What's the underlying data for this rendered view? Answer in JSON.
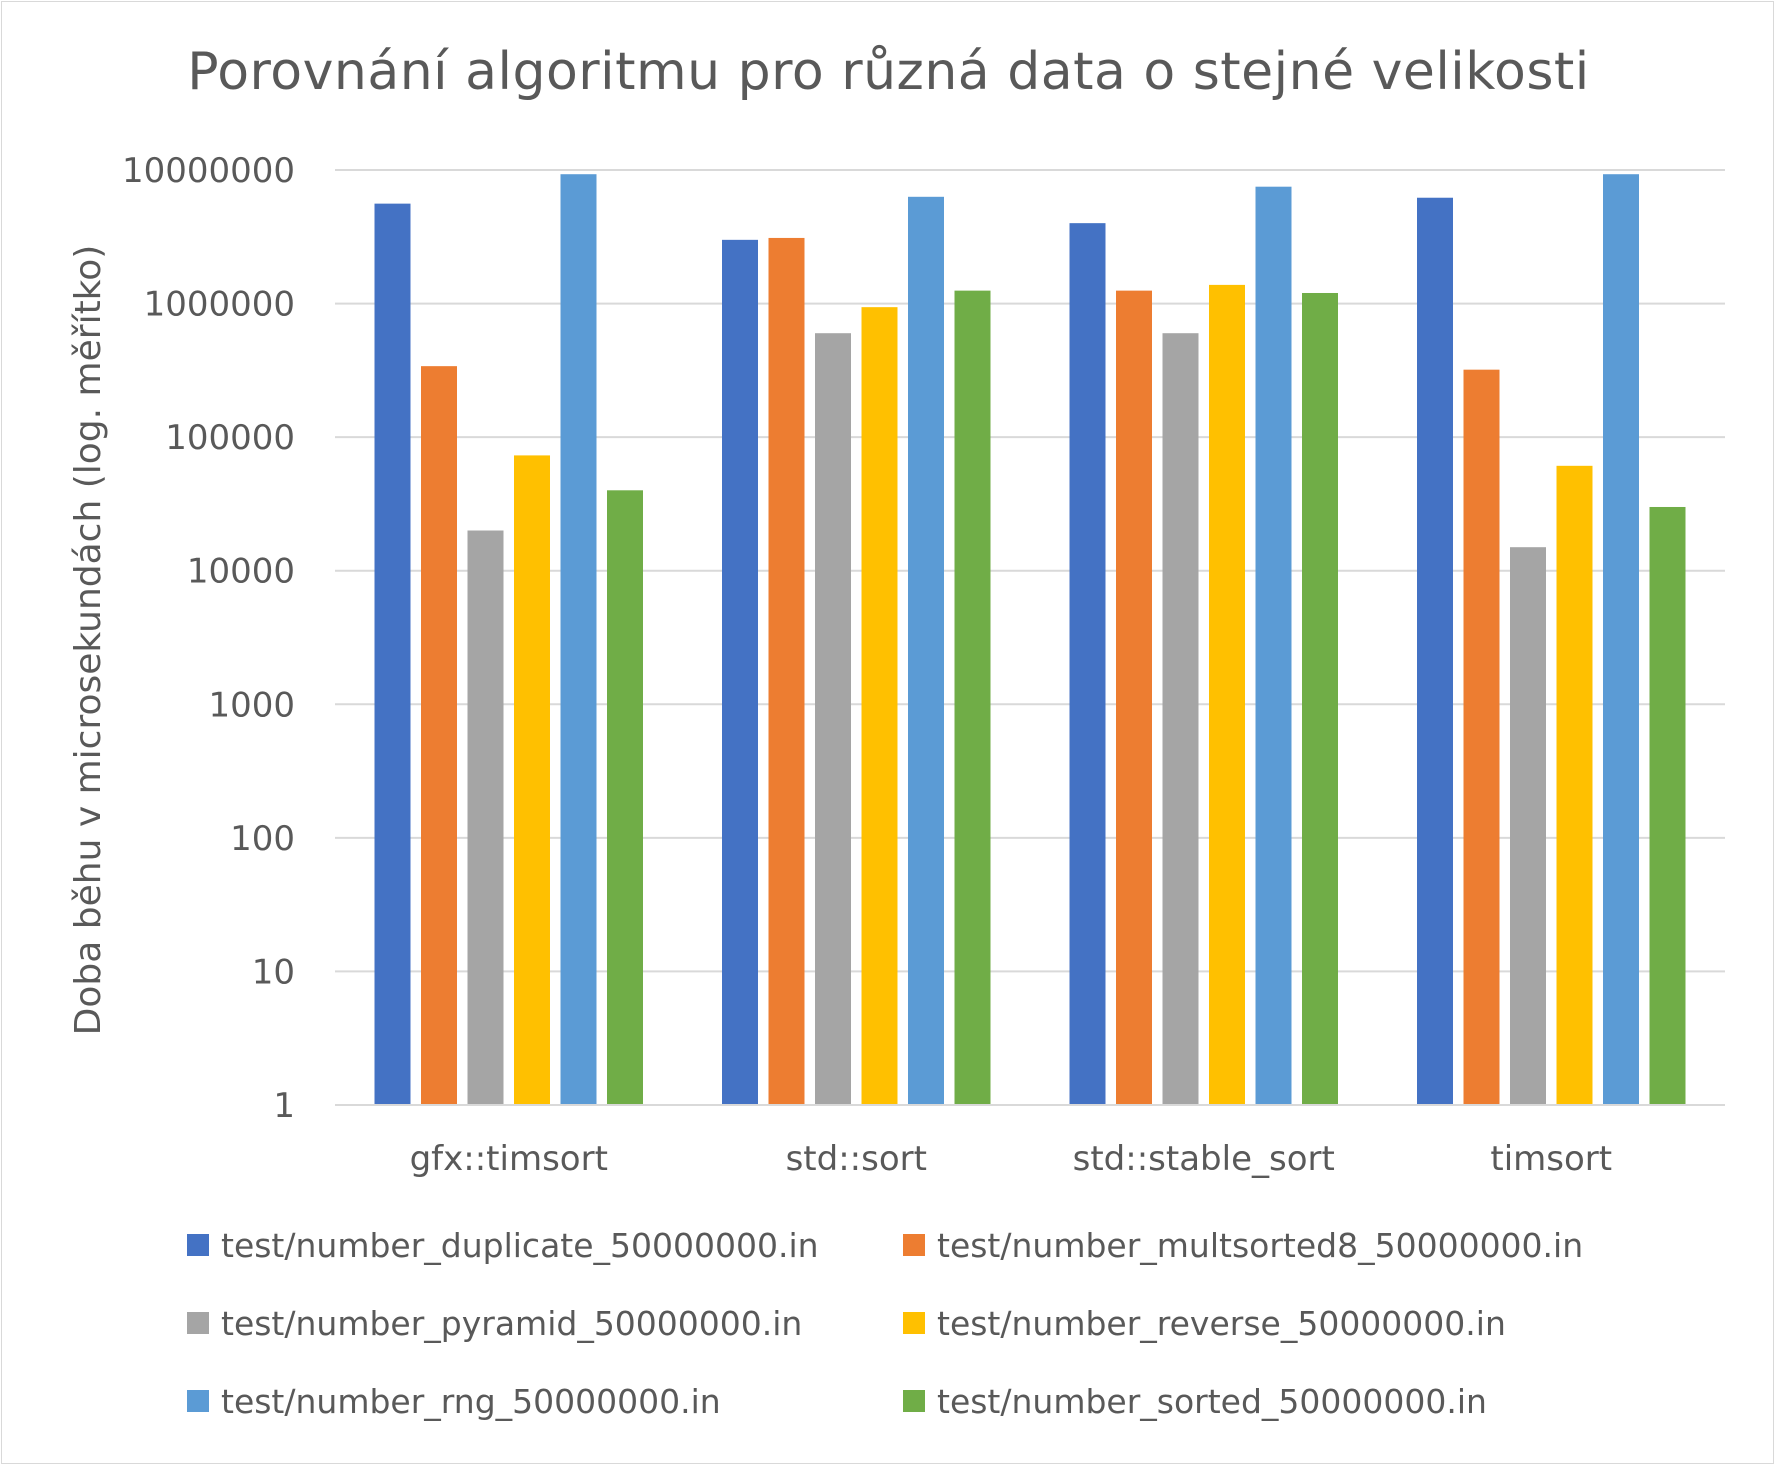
{
  "chart_data": {
    "type": "bar",
    "title": "Porovnání algoritmu pro různá data o stejné velikosti",
    "ylabel": "Doba běhu v microsekundách (log. měřítko)",
    "xlabel": "",
    "yscale": "log",
    "ylim": [
      1,
      10000000
    ],
    "yticks": [
      "1",
      "10",
      "100",
      "1000",
      "10000",
      "100000",
      "1000000",
      "10000000"
    ],
    "grid": true,
    "legend_position": "bottom",
    "categories": [
      "gfx::timsort",
      "std::sort",
      "std::stable_sort",
      "timsort"
    ],
    "series": [
      {
        "name": "test/number_duplicate_50000000.in",
        "color": "#4472C4",
        "values": [
          5600000,
          3000000,
          4000000,
          6200000
        ]
      },
      {
        "name": "test/number_multsorted8_50000000.in",
        "color": "#ED7D31",
        "values": [
          340000,
          3100000,
          1250000,
          320000
        ]
      },
      {
        "name": "test/number_pyramid_50000000.in",
        "color": "#A5A5A5",
        "values": [
          20000,
          600000,
          600000,
          15000
        ]
      },
      {
        "name": "test/number_reverse_50000000.in",
        "color": "#FFC000",
        "values": [
          73000,
          940000,
          1380000,
          61000
        ]
      },
      {
        "name": "test/number_rng_50000000.in",
        "color": "#5B9BD5",
        "values": [
          9300000,
          6300000,
          7500000,
          9300000
        ]
      },
      {
        "name": "test/number_sorted_50000000.in",
        "color": "#70AD47",
        "values": [
          40000,
          1250000,
          1200000,
          30000
        ]
      }
    ]
  }
}
